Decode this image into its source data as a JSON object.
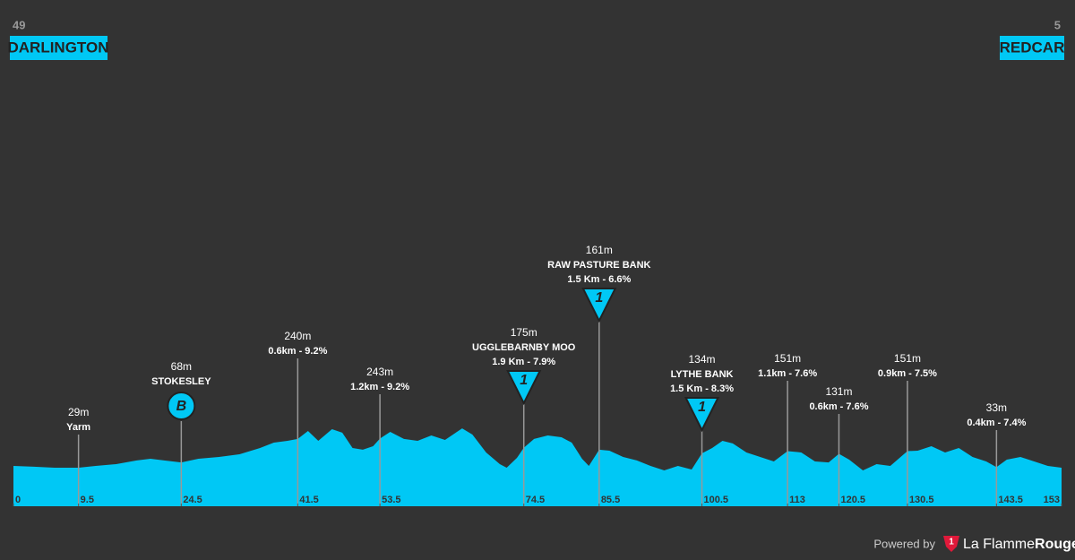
{
  "chart_data": {
    "type": "area",
    "color": "#00c8f5",
    "start": {
      "number": "49",
      "name": "DARLINGTON"
    },
    "finish": {
      "number": "5",
      "name": "REDCAR"
    },
    "x": [
      0,
      3,
      6,
      9.5,
      12,
      15,
      18,
      20,
      22,
      24.5,
      27,
      30,
      33,
      36,
      38,
      40,
      41.5,
      43,
      44.5,
      46.5,
      48,
      49.5,
      51,
      52.5,
      53.5,
      55,
      57,
      59,
      61,
      63,
      65.5,
      67,
      69,
      71,
      72,
      73.5,
      74.5,
      76,
      78,
      80,
      81.5,
      83,
      84,
      85.5,
      87,
      89,
      91,
      93,
      95,
      97,
      99,
      100.5,
      102,
      103.5,
      105,
      107,
      109,
      111,
      113,
      115,
      117,
      119,
      120.5,
      122,
      124,
      126,
      128,
      130.5,
      132,
      134,
      136,
      138,
      140,
      142,
      143.5,
      145,
      147,
      149,
      151,
      153
    ],
    "values": [
      42,
      36,
      29,
      29,
      42,
      55,
      82,
      95,
      82,
      68,
      95,
      108,
      128,
      174,
      213,
      226,
      240,
      299,
      226,
      312,
      286,
      174,
      161,
      187,
      243,
      292,
      240,
      226,
      266,
      233,
      318,
      272,
      141,
      55,
      29,
      101,
      175,
      240,
      266,
      253,
      213,
      95,
      42,
      161,
      154,
      108,
      82,
      42,
      9,
      42,
      16,
      134,
      174,
      226,
      207,
      141,
      108,
      75,
      151,
      141,
      75,
      68,
      131,
      88,
      9,
      55,
      42,
      151,
      154,
      187,
      141,
      174,
      108,
      75,
      33,
      88,
      108,
      75,
      42,
      29
    ],
    "xlim": [
      0,
      153
    ],
    "xticks": [
      0,
      9.5,
      24.5,
      41.5,
      53.5,
      74.5,
      85.5,
      100.5,
      113,
      120.5,
      130.5,
      143.5,
      153
    ],
    "annotations": [
      {
        "km": 9.5,
        "elevation": "29m",
        "name": "Yarm"
      },
      {
        "km": 24.5,
        "elevation": "68m",
        "name": "STOKESLEY",
        "icon": "B"
      },
      {
        "km": 41.5,
        "elevation": "240m",
        "detail": "0.6km - 9.2%"
      },
      {
        "km": 53.5,
        "elevation": "243m",
        "detail": "1.2km - 9.2%"
      },
      {
        "km": 74.5,
        "elevation": "175m",
        "name": "UGGLEBARNBY MOO",
        "detail": "1.9 Km - 7.9%",
        "icon": "1"
      },
      {
        "km": 85.5,
        "elevation": "161m",
        "name": "RAW PASTURE BANK",
        "detail": "1.5 Km - 6.6%",
        "icon": "1"
      },
      {
        "km": 100.5,
        "elevation": "134m",
        "name": "LYTHE BANK",
        "detail": "1.5 Km - 8.3%",
        "icon": "1"
      },
      {
        "km": 113,
        "elevation": "151m",
        "detail": "1.1km - 7.6%"
      },
      {
        "km": 120.5,
        "elevation": "131m",
        "detail": "0.6km - 7.6%"
      },
      {
        "km": 130.5,
        "elevation": "151m",
        "detail": "0.9km - 7.5%"
      },
      {
        "km": 143.5,
        "elevation": "33m",
        "detail": "0.4km - 7.4%"
      }
    ],
    "footer": {
      "powered": "Powered by",
      "logo": "1",
      "brand": "La Flamme",
      "brand_bold": "Rouge"
    }
  }
}
